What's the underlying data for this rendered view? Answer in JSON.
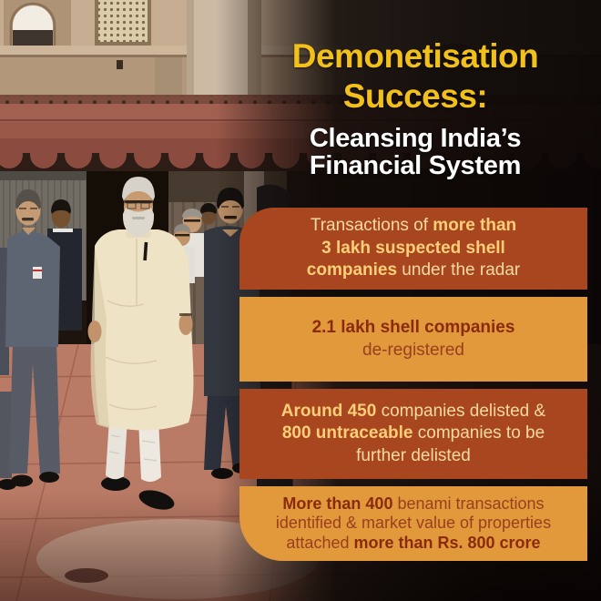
{
  "title": {
    "line1": "Demonetisation",
    "line2": "Success:",
    "subtitle_line1": "Cleansing India’s",
    "subtitle_line2": "Financial System"
  },
  "infoboxes": [
    {
      "theme": "rust",
      "lines": [
        [
          {
            "t": "Transactions of ",
            "b": false
          },
          {
            "t": "more than",
            "b": true
          }
        ],
        [
          {
            "t": "3 lakh suspected shell",
            "b": true
          }
        ],
        [
          {
            "t": "companies",
            "b": true
          },
          {
            "t": " under the radar",
            "b": false
          }
        ]
      ]
    },
    {
      "theme": "orange",
      "lines": [
        [
          {
            "t": "2.1 lakh shell companies",
            "b": true
          }
        ],
        [
          {
            "t": "de-registered",
            "b": false
          }
        ]
      ]
    },
    {
      "theme": "rust",
      "lines": [
        [
          {
            "t": "Around 450",
            "b": true
          },
          {
            "t": " companies delisted &",
            "b": false
          }
        ],
        [
          {
            "t": "800 untraceable",
            "b": true
          },
          {
            "t": " companies to be",
            "b": false
          }
        ],
        [
          {
            "t": "further delisted",
            "b": false
          }
        ]
      ]
    },
    {
      "theme": "orange",
      "lines": [
        [
          {
            "t": "More than 400",
            "b": true
          },
          {
            "t": " benami transactions",
            "b": false
          }
        ],
        [
          {
            "t": "identified & market value of properties",
            "b": false
          }
        ],
        [
          {
            "t": "attached ",
            "b": false
          },
          {
            "t": "more than Rs. 800 crore",
            "b": true
          }
        ]
      ]
    }
  ],
  "colors": {
    "title_yellow": "#F2C01B",
    "subtitle_white": "#FFFFFF",
    "box_rust": "#A8471F",
    "box_orange": "#E2993C",
    "text_cream": "#F7D9A1",
    "text_cream_bold": "#FFCE78",
    "text_dark": "#9A3F1D",
    "text_dark_bold": "#8A2B0E"
  }
}
